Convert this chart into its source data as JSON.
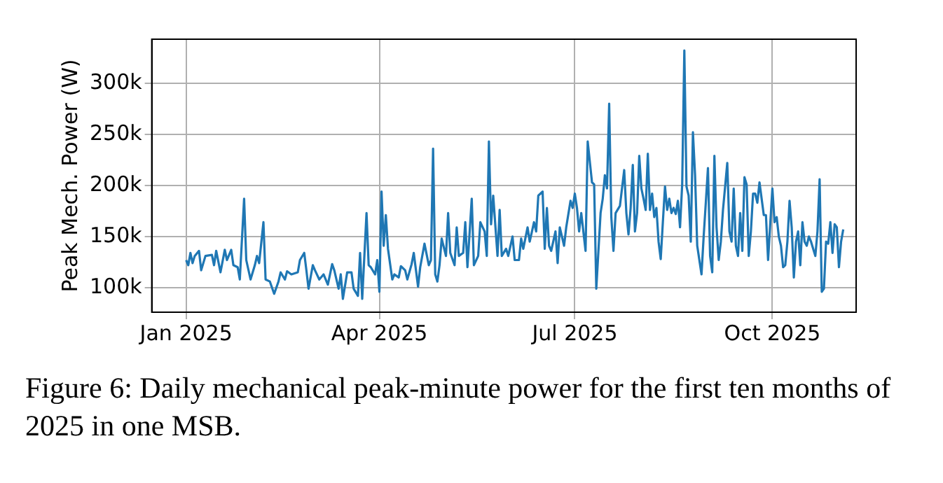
{
  "chart_data": {
    "type": "line",
    "ylabel": "Peak Mech. Power (W)",
    "color": "#1f77b4",
    "grid": true,
    "marker": "none",
    "line_style": "solid",
    "annotations": [
      "Figure 6: Daily mechanical peak-minute power for the first ten months of 2025 in one MSB."
    ],
    "xlim": [
      "2024-12-16",
      "2025-11-09"
    ],
    "xticks": [
      {
        "value": "2025-01-01",
        "label": "Jan 2025"
      },
      {
        "value": "2025-04-01",
        "label": "Apr 2025"
      },
      {
        "value": "2025-07-01",
        "label": "Jul 2025"
      },
      {
        "value": "2025-10-01",
        "label": "Oct 2025"
      }
    ],
    "ylim": [
      76000,
      343000
    ],
    "yticks": [
      {
        "value": 100000,
        "label": "100k"
      },
      {
        "value": 150000,
        "label": "150k"
      },
      {
        "value": 200000,
        "label": "200k"
      },
      {
        "value": 250000,
        "label": "250k"
      },
      {
        "value": 300000,
        "label": "300k"
      }
    ],
    "x": [
      "2025-01-01",
      "2025-01-02",
      "2025-01-03",
      "2025-01-04",
      "2025-01-05",
      "2025-01-07",
      "2025-01-08",
      "2025-01-10",
      "2025-01-13",
      "2025-01-14",
      "2025-01-15",
      "2025-01-17",
      "2025-01-19",
      "2025-01-20",
      "2025-01-22",
      "2025-01-23",
      "2025-01-25",
      "2025-01-26",
      "2025-01-28",
      "2025-01-29",
      "2025-01-31",
      "2025-02-02",
      "2025-02-03",
      "2025-02-04",
      "2025-02-06",
      "2025-02-07",
      "2025-02-09",
      "2025-02-11",
      "2025-02-13",
      "2025-02-14",
      "2025-02-16",
      "2025-02-17",
      "2025-02-19",
      "2025-02-22",
      "2025-02-23",
      "2025-02-25",
      "2025-02-26",
      "2025-02-27",
      "2025-03-01",
      "2025-03-02",
      "2025-03-04",
      "2025-03-06",
      "2025-03-08",
      "2025-03-10",
      "2025-03-11",
      "2025-03-13",
      "2025-03-14",
      "2025-03-15",
      "2025-03-17",
      "2025-03-19",
      "2025-03-20",
      "2025-03-22",
      "2025-03-23",
      "2025-03-24",
      "2025-03-26",
      "2025-03-27",
      "2025-03-28",
      "2025-03-30",
      "2025-03-31",
      "2025-04-01",
      "2025-04-02",
      "2025-04-03",
      "2025-04-04",
      "2025-04-05",
      "2025-04-07",
      "2025-04-08",
      "2025-04-10",
      "2025-04-11",
      "2025-04-13",
      "2025-04-14",
      "2025-04-16",
      "2025-04-17",
      "2025-04-19",
      "2025-04-20",
      "2025-04-22",
      "2025-04-24",
      "2025-04-25",
      "2025-04-26",
      "2025-04-27",
      "2025-04-28",
      "2025-04-29",
      "2025-04-30",
      "2025-05-02",
      "2025-05-03",
      "2025-05-04",
      "2025-05-06",
      "2025-05-07",
      "2025-05-08",
      "2025-05-10",
      "2025-05-11",
      "2025-05-12",
      "2025-05-14",
      "2025-05-15",
      "2025-05-17",
      "2025-05-18",
      "2025-05-20",
      "2025-05-21",
      "2025-05-22",
      "2025-05-23",
      "2025-05-24",
      "2025-05-26",
      "2025-05-27",
      "2025-05-28",
      "2025-05-30",
      "2025-05-31",
      "2025-06-02",
      "2025-06-03",
      "2025-06-05",
      "2025-06-06",
      "2025-06-07",
      "2025-06-09",
      "2025-06-10",
      "2025-06-12",
      "2025-06-13",
      "2025-06-14",
      "2025-06-16",
      "2025-06-17",
      "2025-06-18",
      "2025-06-19",
      "2025-06-20",
      "2025-06-22",
      "2025-06-23",
      "2025-06-24",
      "2025-06-25",
      "2025-06-26",
      "2025-06-27",
      "2025-06-29",
      "2025-06-30",
      "2025-07-01",
      "2025-07-02",
      "2025-07-03",
      "2025-07-04",
      "2025-07-06",
      "2025-07-07",
      "2025-07-09",
      "2025-07-10",
      "2025-07-11",
      "2025-07-13",
      "2025-07-14",
      "2025-07-15",
      "2025-07-16",
      "2025-07-17",
      "2025-07-18",
      "2025-07-19",
      "2025-07-20",
      "2025-07-22",
      "2025-07-24",
      "2025-07-25",
      "2025-07-26",
      "2025-07-27",
      "2025-07-28",
      "2025-07-29",
      "2025-07-30",
      "2025-07-31",
      "2025-08-01",
      "2025-08-02",
      "2025-08-03",
      "2025-08-04",
      "2025-08-05",
      "2025-08-06",
      "2025-08-07",
      "2025-08-08",
      "2025-08-09",
      "2025-08-10",
      "2025-08-11",
      "2025-08-12",
      "2025-08-13",
      "2025-08-14",
      "2025-08-15",
      "2025-08-16",
      "2025-08-17",
      "2025-08-18",
      "2025-08-19",
      "2025-08-20",
      "2025-08-21",
      "2025-08-22",
      "2025-08-23",
      "2025-08-24",
      "2025-08-25",
      "2025-08-26",
      "2025-08-27",
      "2025-08-28",
      "2025-08-29",
      "2025-08-30",
      "2025-08-31",
      "2025-09-01",
      "2025-09-02",
      "2025-09-03",
      "2025-09-04",
      "2025-09-05",
      "2025-09-06",
      "2025-09-07",
      "2025-09-08",
      "2025-09-10",
      "2025-09-11",
      "2025-09-12",
      "2025-09-13",
      "2025-09-14",
      "2025-09-15",
      "2025-09-16",
      "2025-09-17",
      "2025-09-18",
      "2025-09-19",
      "2025-09-20",
      "2025-09-21",
      "2025-09-22",
      "2025-09-23",
      "2025-09-24",
      "2025-09-25",
      "2025-09-27",
      "2025-09-28",
      "2025-09-29",
      "2025-10-01",
      "2025-10-02",
      "2025-10-03",
      "2025-10-04",
      "2025-10-05",
      "2025-10-06",
      "2025-10-07",
      "2025-10-08",
      "2025-10-09",
      "2025-10-10",
      "2025-10-11",
      "2025-10-12",
      "2025-10-13",
      "2025-10-14",
      "2025-10-15",
      "2025-10-16",
      "2025-10-17",
      "2025-10-18",
      "2025-10-19",
      "2025-10-20",
      "2025-10-21",
      "2025-10-22",
      "2025-10-23",
      "2025-10-24",
      "2025-10-25",
      "2025-10-26",
      "2025-10-27",
      "2025-10-28",
      "2025-10-29",
      "2025-10-30",
      "2025-10-31",
      "2025-11-01",
      "2025-11-02",
      "2025-11-03"
    ],
    "values": [
      127000,
      122000,
      134000,
      124000,
      131000,
      136000,
      117000,
      131000,
      132000,
      122000,
      136000,
      115000,
      137000,
      127000,
      137000,
      122000,
      120000,
      108000,
      187000,
      127000,
      108000,
      122000,
      131000,
      124000,
      164000,
      108000,
      106000,
      94000,
      106000,
      115000,
      108000,
      116000,
      113000,
      115000,
      127000,
      134000,
      117000,
      99000,
      122000,
      117000,
      108000,
      113000,
      103000,
      123000,
      117000,
      99000,
      113000,
      89000,
      115000,
      115000,
      99000,
      92000,
      134000,
      89000,
      173000,
      122000,
      120000,
      113000,
      127000,
      96000,
      194000,
      141000,
      171000,
      138000,
      108000,
      113000,
      110000,
      121000,
      117000,
      108000,
      123000,
      134000,
      101000,
      120000,
      143000,
      122000,
      127000,
      236000,
      113000,
      106000,
      122000,
      148000,
      131000,
      173000,
      134000,
      122000,
      159000,
      131000,
      134000,
      164000,
      120000,
      187000,
      122000,
      131000,
      164000,
      155000,
      131000,
      243000,
      162000,
      190000,
      131000,
      176000,
      131000,
      138000,
      131000,
      150000,
      127000,
      127000,
      148000,
      138000,
      159000,
      145000,
      164000,
      155000,
      190000,
      194000,
      138000,
      178000,
      141000,
      136000,
      155000,
      124000,
      159000,
      150000,
      141000,
      159000,
      185000,
      178000,
      192000,
      178000,
      155000,
      173000,
      136000,
      243000,
      203000,
      201000,
      99000,
      173000,
      187000,
      210000,
      197000,
      280000,
      169000,
      136000,
      173000,
      180000,
      215000,
      173000,
      152000,
      178000,
      220000,
      155000,
      173000,
      229000,
      197000,
      187000,
      176000,
      231000,
      176000,
      192000,
      169000,
      178000,
      145000,
      128000,
      164000,
      199000,
      176000,
      187000,
      173000,
      178000,
      172000,
      185000,
      159000,
      201000,
      332000,
      199000,
      190000,
      145000,
      252000,
      210000,
      141000,
      127000,
      113000,
      150000,
      183000,
      217000,
      131000,
      115000,
      229000,
      159000,
      127000,
      145000,
      176000,
      222000,
      155000,
      145000,
      197000,
      141000,
      131000,
      173000,
      136000,
      208000,
      201000,
      131000,
      155000,
      192000,
      192000,
      183000,
      203000,
      171000,
      171000,
      127000,
      197000,
      164000,
      169000,
      150000,
      141000,
      120000,
      122000,
      145000,
      185000,
      159000,
      110000,
      145000,
      155000,
      122000,
      164000,
      145000,
      141000,
      150000,
      145000,
      138000,
      131000,
      155000,
      206000,
      96000,
      99000,
      145000,
      143000,
      164000,
      134000,
      162000,
      159000,
      120000,
      145000,
      157000
    ]
  }
}
